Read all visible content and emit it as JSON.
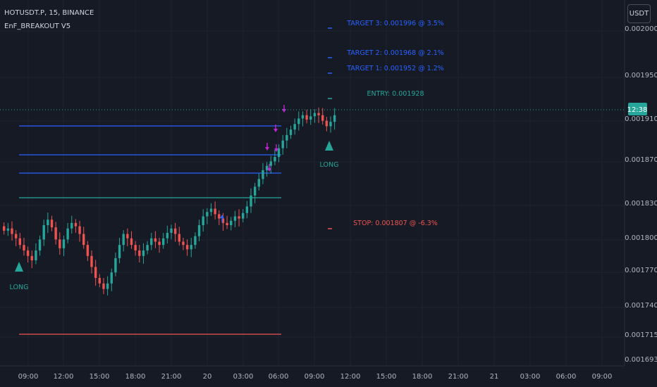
{
  "header": {
    "symbol_line": "HOTUSDT.P, 15, BINANCE",
    "indicator_name": "EnF_BREAKOUT V5"
  },
  "currency_button": "USDT",
  "price_axis": {
    "labels": [
      "0.002000",
      "0.001950",
      "0.001910",
      "0.001870",
      "0.001830",
      "0.001800",
      "0.001770",
      "0.001740",
      "0.001715",
      "0.001693"
    ],
    "current_time_badge": "12:38"
  },
  "time_axis": {
    "labels": [
      "09:00",
      "12:00",
      "15:00",
      "18:00",
      "21:00",
      "20",
      "03:00",
      "06:00",
      "09:00",
      "12:00",
      "15:00",
      "18:00",
      "21:00",
      "21",
      "03:00",
      "06:00",
      "09:00"
    ]
  },
  "annotations": {
    "target3": "TARGET 3: 0.001996 @ 3.5%",
    "target2": "TARGET 2: 0.001968 @ 2.1%",
    "target1": "TARGET 1: 0.001952 @ 1.2%",
    "entry": "ENTRY: 0.001928",
    "stop": "STOP: 0.001807 @ -6.3%",
    "long_label": "LONG"
  },
  "colors": {
    "background": "#161a25",
    "up_candle": "#26a69a",
    "down_candle": "#ef5350",
    "target_text": "#2962ff",
    "entry_text": "#26a69a",
    "stop_text": "#ef5350",
    "signal_arrow_down": "#c026d3",
    "signal_arrow_up": "#2962ff"
  },
  "chart_data": {
    "type": "candlestick",
    "price_scale": {
      "min": 0.00169,
      "max": 0.00201
    },
    "close_series": [
      0.001813,
      0.001815,
      0.00181,
      0.001806,
      0.0018,
      0.001795,
      0.00179,
      0.001786,
      0.001795,
      0.001805,
      0.001818,
      0.001823,
      0.001816,
      0.001805,
      0.001797,
      0.001805,
      0.001815,
      0.00182,
      0.001817,
      0.00181,
      0.0018,
      0.00179,
      0.00178,
      0.00177,
      0.001765,
      0.00176,
      0.001765,
      0.001775,
      0.001788,
      0.0018,
      0.00181,
      0.001806,
      0.0018,
      0.001795,
      0.00179,
      0.001795,
      0.0018,
      0.001806,
      0.001803,
      0.0018,
      0.001806,
      0.001811,
      0.001815,
      0.00181,
      0.001803,
      0.0018,
      0.001796,
      0.0018,
      0.001808,
      0.001818,
      0.001826,
      0.00183,
      0.001833,
      0.001828,
      0.001824,
      0.00182,
      0.001818,
      0.001822,
      0.001826,
      0.001824,
      0.001829,
      0.001835,
      0.001845,
      0.001853,
      0.00186,
      0.001868,
      0.001872,
      0.001876,
      0.00188,
      0.001888,
      0.001895,
      0.0019,
      0.001905,
      0.00191,
      0.001915,
      0.001918,
      0.001914,
      0.001917,
      0.00192,
      0.001918,
      0.001913,
      0.001908,
      0.001912,
      0.001918
    ],
    "signals": [
      {
        "type": "LONG",
        "index": 5
      },
      {
        "type": "LONG",
        "index": 80
      }
    ]
  }
}
